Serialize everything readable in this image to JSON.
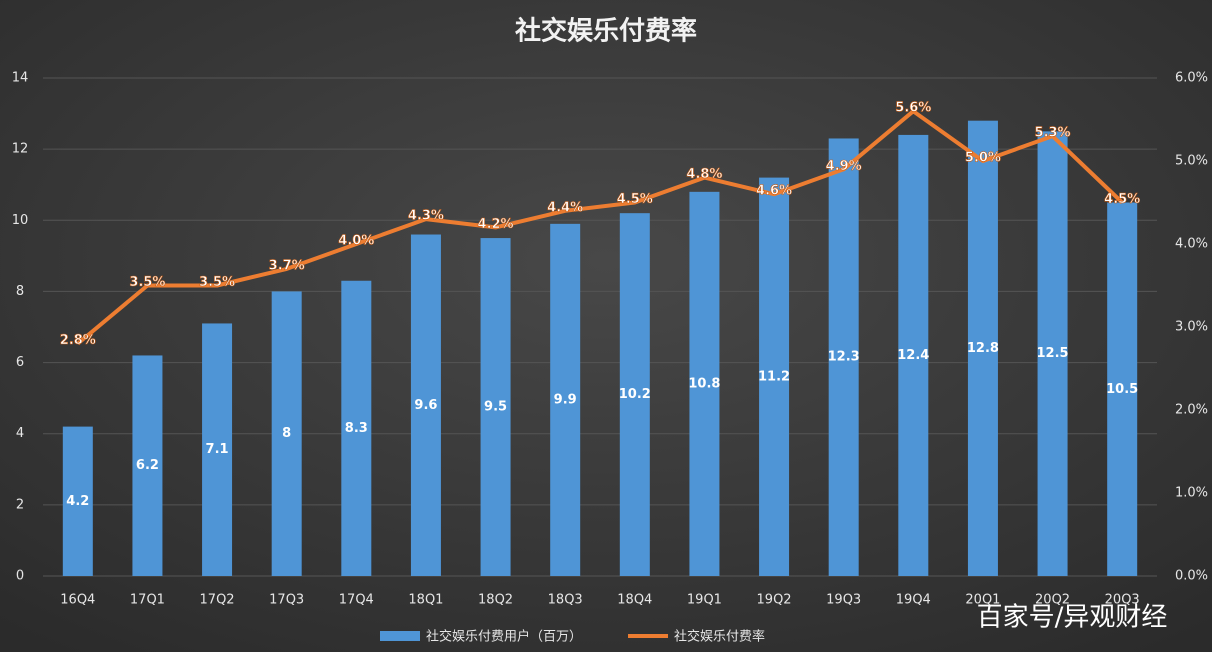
{
  "chart_data": {
    "type": "bar",
    "title": "社交娱乐付费率",
    "categories": [
      "16Q4",
      "17Q1",
      "17Q2",
      "17Q3",
      "17Q4",
      "18Q1",
      "18Q2",
      "18Q3",
      "18Q4",
      "19Q1",
      "19Q2",
      "19Q3",
      "19Q4",
      "20Q1",
      "20Q2",
      "20Q3"
    ],
    "series": [
      {
        "name": "社交娱乐付费用户（百万）",
        "type": "bar",
        "color": "#4f95d6",
        "values": [
          4.2,
          6.2,
          7.1,
          8,
          8.3,
          9.6,
          9.5,
          9.9,
          10.2,
          10.8,
          11.2,
          12.3,
          12.4,
          12.8,
          12.5,
          10.5
        ]
      },
      {
        "name": "社交娱乐付费率",
        "type": "line",
        "axis": "y2",
        "color": "#ed7d31",
        "values": [
          2.8,
          3.5,
          3.5,
          3.7,
          4.0,
          4.3,
          4.2,
          4.4,
          4.5,
          4.8,
          4.6,
          4.9,
          5.6,
          5.0,
          5.3,
          4.5
        ],
        "value_labels": [
          "2.8%",
          "3.5%",
          "3.5%",
          "3.7%",
          "4.0%",
          "4.3%",
          "4.2%",
          "4.4%",
          "4.5%",
          "4.8%",
          "4.6%",
          "4.9%",
          "5.6%",
          "5.0%",
          "5.3%",
          "4.5%"
        ]
      }
    ],
    "ylim": [
      0,
      14
    ],
    "yticks": [
      0,
      2,
      4,
      6,
      8,
      10,
      12,
      14
    ],
    "y2lim": [
      0,
      6
    ],
    "y2ticks": [
      {
        "value": 0,
        "label": "0.0%"
      },
      {
        "value": 1,
        "label": "1.0%"
      },
      {
        "value": 2,
        "label": "2.0%"
      },
      {
        "value": 3,
        "label": "3.0%"
      },
      {
        "value": 4,
        "label": "4.0%"
      },
      {
        "value": 5,
        "label": "5.0%"
      },
      {
        "value": 6,
        "label": "6.0%"
      }
    ],
    "grid": true,
    "legend": "bottom"
  },
  "watermark": "百家号/异观财经"
}
